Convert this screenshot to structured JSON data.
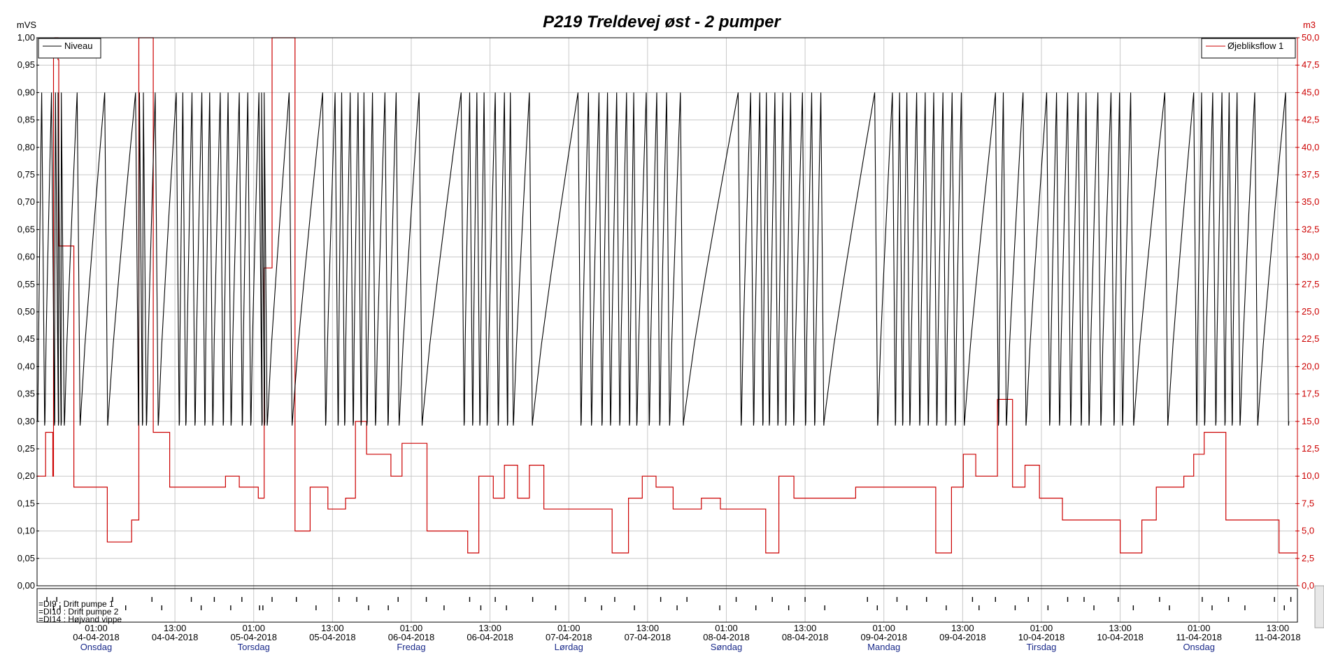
{
  "chart_data": {
    "type": "line",
    "title": "P219 Treldevej øst - 2 pumper",
    "left_axis": {
      "unit": "mVS",
      "ylim": [
        0,
        1
      ],
      "ticks": [
        "0,00",
        "0,05",
        "0,10",
        "0,15",
        "0,20",
        "0,25",
        "0,30",
        "0,35",
        "0,40",
        "0,45",
        "0,50",
        "0,55",
        "0,60",
        "0,65",
        "0,70",
        "0,75",
        "0,80",
        "0,85",
        "0,90",
        "0,95",
        "1,00"
      ]
    },
    "right_axis": {
      "unit": "m3",
      "ylim": [
        0,
        50
      ],
      "ticks": [
        "0,0",
        "2,5",
        "5,0",
        "7,5",
        "10,0",
        "12,5",
        "15,0",
        "17,5",
        "20,0",
        "22,5",
        "25,0",
        "27,5",
        "30,0",
        "32,5",
        "35,0",
        "37,5",
        "40,0",
        "42,5",
        "45,0",
        "47,5",
        "50,0"
      ]
    },
    "x_axis": {
      "range_hours": [
        -9,
        183
      ],
      "ticks": [
        {
          "time": "01:00",
          "date": "04-04-2018",
          "day": "Onsdag"
        },
        {
          "time": "13:00",
          "date": "04-04-2018",
          "day": ""
        },
        {
          "time": "01:00",
          "date": "05-04-2018",
          "day": "Torsdag"
        },
        {
          "time": "13:00",
          "date": "05-04-2018",
          "day": ""
        },
        {
          "time": "01:00",
          "date": "06-04-2018",
          "day": "Fredag"
        },
        {
          "time": "13:00",
          "date": "06-04-2018",
          "day": ""
        },
        {
          "time": "01:00",
          "date": "07-04-2018",
          "day": "Lørdag"
        },
        {
          "time": "13:00",
          "date": "07-04-2018",
          "day": ""
        },
        {
          "time": "01:00",
          "date": "08-04-2018",
          "day": "Søndag"
        },
        {
          "time": "13:00",
          "date": "08-04-2018",
          "day": ""
        },
        {
          "time": "01:00",
          "date": "09-04-2018",
          "day": "Mandag"
        },
        {
          "time": "13:00",
          "date": "09-04-2018",
          "day": ""
        },
        {
          "time": "01:00",
          "date": "10-04-2018",
          "day": "Tirsdag"
        },
        {
          "time": "13:00",
          "date": "10-04-2018",
          "day": ""
        },
        {
          "time": "01:00",
          "date": "11-04-2018",
          "day": "Onsdag"
        },
        {
          "time": "13:00",
          "date": "11-04-2018",
          "day": ""
        }
      ]
    },
    "grid": true,
    "legend_left": {
      "label": "Niveau",
      "placement": "top-left"
    },
    "legend_right": {
      "label": "Øjebliksflow 1",
      "placement": "top-right"
    },
    "series": [
      {
        "name": "Niveau",
        "axis": "left",
        "color": "#000000",
        "style": "sawtooth",
        "min": 0.3,
        "max": 0.9,
        "peak_times_hours": [
          -8.3,
          -6.8,
          -6.2,
          -5.8,
          -5.3,
          -2.9,
          1.3,
          6.0,
          6.6,
          7.2,
          9.0,
          12.2,
          13.2,
          14.6,
          16.1,
          17.3,
          18.9,
          20.1,
          21.8,
          23.1,
          24.8,
          25.2,
          25.6,
          29.4,
          34.5,
          36.4,
          37.4,
          38.7,
          39.9,
          40.8,
          42.1,
          44.0,
          45.7,
          49.2,
          55.6,
          56.9,
          58.0,
          59.1,
          60.8,
          62.2,
          63.1,
          66.0,
          73.4,
          75.0,
          76.6,
          77.9,
          79.3,
          80.8,
          81.9,
          83.8,
          85.4,
          86.9,
          89.0,
          97.8,
          99.7,
          101.1,
          102.1,
          103.4,
          104.6,
          105.8,
          107.6,
          109.0,
          110.4,
          118.6,
          121.3,
          122.4,
          123.5,
          125.0,
          126.3,
          127.6,
          129.0,
          130.4,
          131.8,
          137.0,
          138.2,
          141.2,
          144.8,
          146.3,
          148.0,
          149.6,
          150.8,
          152.6,
          154.6,
          155.9,
          157.6,
          162.8,
          167.2,
          168.4,
          170.1,
          171.5,
          172.6,
          173.8,
          176.5,
          181.2
        ]
      },
      {
        "name": "Øjebliksflow 1",
        "axis": "right",
        "color": "#cc0000",
        "style": "step",
        "points": [
          [
            -9,
            10
          ],
          [
            -7.7,
            14
          ],
          [
            -6.6,
            10
          ],
          [
            -6.5,
            48.5
          ],
          [
            -6.3,
            50
          ],
          [
            -5.8,
            48
          ],
          [
            -5.7,
            31
          ],
          [
            -4.1,
            31
          ],
          [
            -3.4,
            9
          ],
          [
            1.5,
            9
          ],
          [
            1.7,
            4
          ],
          [
            5.2,
            4
          ],
          [
            5.4,
            6
          ],
          [
            6.2,
            6
          ],
          [
            6.5,
            50
          ],
          [
            7.4,
            50
          ],
          [
            8.5,
            50
          ],
          [
            8.7,
            14
          ],
          [
            11.0,
            14
          ],
          [
            11.2,
            9
          ],
          [
            19.5,
            9
          ],
          [
            19.7,
            10
          ],
          [
            21.6,
            10
          ],
          [
            21.8,
            9
          ],
          [
            24.5,
            9
          ],
          [
            24.7,
            8
          ],
          [
            25.4,
            8
          ],
          [
            25.6,
            29
          ],
          [
            26.6,
            29
          ],
          [
            26.8,
            50
          ],
          [
            30.1,
            50
          ],
          [
            30.3,
            5
          ],
          [
            32.4,
            5
          ],
          [
            32.6,
            9
          ],
          [
            35.1,
            9
          ],
          [
            35.3,
            7
          ],
          [
            37.8,
            7
          ],
          [
            38.0,
            8
          ],
          [
            39.3,
            8
          ],
          [
            39.5,
            15
          ],
          [
            41.0,
            15
          ],
          [
            41.2,
            12
          ],
          [
            44.7,
            12
          ],
          [
            44.9,
            10
          ],
          [
            46.4,
            10
          ],
          [
            46.6,
            13
          ],
          [
            50.2,
            13
          ],
          [
            50.4,
            5
          ],
          [
            56.4,
            5
          ],
          [
            56.6,
            3
          ],
          [
            58.1,
            3
          ],
          [
            58.3,
            10
          ],
          [
            60.3,
            10
          ],
          [
            60.5,
            8
          ],
          [
            62.0,
            8
          ],
          [
            62.2,
            11
          ],
          [
            64.0,
            11
          ],
          [
            64.2,
            8
          ],
          [
            65.8,
            8
          ],
          [
            66.0,
            11
          ],
          [
            68.0,
            11
          ],
          [
            68.2,
            7
          ],
          [
            78.4,
            7
          ],
          [
            78.6,
            3
          ],
          [
            80.9,
            3
          ],
          [
            81.1,
            8
          ],
          [
            83.0,
            8
          ],
          [
            83.2,
            10
          ],
          [
            85.1,
            10
          ],
          [
            85.3,
            9
          ],
          [
            87.7,
            9
          ],
          [
            87.9,
            7
          ],
          [
            92.0,
            7
          ],
          [
            92.2,
            8
          ],
          [
            94.9,
            8
          ],
          [
            95.1,
            7
          ],
          [
            101.8,
            7
          ],
          [
            102.0,
            3
          ],
          [
            103.8,
            3
          ],
          [
            104.0,
            10
          ],
          [
            106.1,
            10
          ],
          [
            106.3,
            8
          ],
          [
            115.5,
            8
          ],
          [
            115.7,
            9
          ],
          [
            127.7,
            9
          ],
          [
            127.9,
            3
          ],
          [
            130.1,
            3
          ],
          [
            130.3,
            9
          ],
          [
            131.9,
            9
          ],
          [
            132.1,
            12
          ],
          [
            133.8,
            12
          ],
          [
            134.0,
            10
          ],
          [
            137.1,
            10
          ],
          [
            137.3,
            17
          ],
          [
            139.4,
            17
          ],
          [
            139.6,
            9
          ],
          [
            141.3,
            9
          ],
          [
            141.5,
            11
          ],
          [
            143.5,
            11
          ],
          [
            143.7,
            8
          ],
          [
            147.0,
            8
          ],
          [
            147.2,
            6
          ],
          [
            155.8,
            6
          ],
          [
            156.0,
            3
          ],
          [
            159.1,
            3
          ],
          [
            159.3,
            6
          ],
          [
            161.3,
            6
          ],
          [
            161.5,
            9
          ],
          [
            165.5,
            9
          ],
          [
            165.7,
            10
          ],
          [
            167.0,
            10
          ],
          [
            167.2,
            12
          ],
          [
            168.6,
            12
          ],
          [
            168.8,
            14
          ],
          [
            171.9,
            14
          ],
          [
            172.1,
            6
          ],
          [
            180.0,
            6
          ],
          [
            180.2,
            3
          ],
          [
            183,
            3
          ]
        ]
      },
      {
        "name": "DI9 : Drift pumpe 1",
        "axis": "digital",
        "style": "events",
        "event_times_hours": [
          -7.5,
          -6,
          2.5,
          8.5,
          14.5,
          18,
          22.2,
          26.8,
          30.5,
          37,
          39.7,
          46,
          50.3,
          56.9,
          60.8,
          66.5,
          74.5,
          79,
          86,
          90,
          97.5,
          103,
          108,
          117.5,
          122,
          126.5,
          133.5,
          137,
          142,
          148,
          150.5,
          155.7,
          162,
          168.5,
          172.5,
          179.5,
          182
        ]
      },
      {
        "name": "DI10 : Drift pumpe 2",
        "axis": "digital",
        "style": "events",
        "event_times_hours": [
          -6.5,
          -5.5,
          4.5,
          10,
          16,
          20.5,
          24.9,
          25.4,
          33.5,
          41.5,
          44.5,
          53,
          58.6,
          62.5,
          70,
          77,
          82,
          88.5,
          95,
          100.5,
          105.5,
          111,
          119,
          123.5,
          129.5,
          134.5,
          140,
          145,
          152,
          158,
          163.5,
          170,
          175,
          181
        ]
      },
      {
        "name": "DI14 : Højvand vippe",
        "axis": "digital",
        "style": "events",
        "event_times_hours": []
      }
    ]
  },
  "digital_labels": [
    "=DI9 : Drift pumpe 1",
    "=DI10 : Drift pumpe 2",
    "=DI14 : Højvand vippe"
  ],
  "colors": {
    "niveau": "#000000",
    "flow": "#cc0000",
    "grid": "#c8c8c8",
    "day_label": "#1a2a8a",
    "right_axis_text": "#cc0000"
  }
}
